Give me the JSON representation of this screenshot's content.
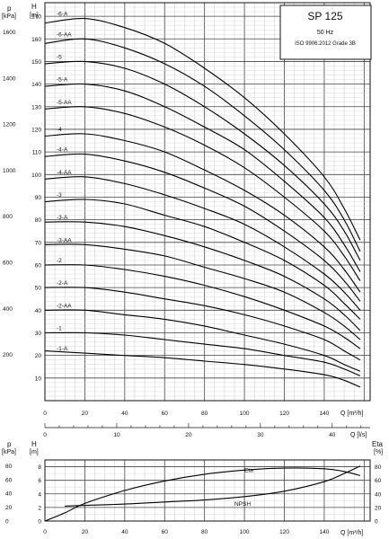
{
  "chart_data": [
    {
      "type": "line",
      "title": "SP 125",
      "subtitle_lines": [
        "50 Hz",
        "ISO 9906:2012 Grade 3B"
      ],
      "left_axis_p_label": "p",
      "left_axis_p_unit": "[kPa]",
      "left_axis_h_label": "H",
      "left_axis_h_unit": "[m]",
      "xlabel_q_m3h": "Q [m³/h]",
      "xlabel_q_ls": "Q [l/s]",
      "xlim_m3h": [
        0,
        163
      ],
      "ylim_h": [
        0,
        176
      ],
      "x_ticks_m3h": [
        0,
        20,
        40,
        60,
        80,
        100,
        120,
        140
      ],
      "x_ticks_ls": [
        0,
        10,
        20,
        30,
        40
      ],
      "h_ticks": [
        10,
        20,
        30,
        40,
        50,
        60,
        70,
        80,
        90,
        100,
        110,
        120,
        130,
        140,
        150,
        160,
        170
      ],
      "p_ticks": [
        200,
        400,
        600,
        800,
        1000,
        1200,
        1400,
        1600
      ],
      "grid": true,
      "series": [
        {
          "name": "-1-A",
          "x": [
            0,
            20,
            40,
            60,
            80,
            100,
            120,
            140,
            150,
            158
          ],
          "y": [
            22,
            21,
            20,
            19,
            17.5,
            16,
            14,
            11.5,
            9,
            6
          ]
        },
        {
          "name": "-1",
          "x": [
            0,
            20,
            40,
            60,
            80,
            100,
            120,
            140,
            150,
            158
          ],
          "y": [
            30,
            30,
            29,
            27,
            25,
            23,
            20,
            17,
            14,
            11
          ]
        },
        {
          "name": "-2-AA",
          "x": [
            0,
            20,
            40,
            60,
            80,
            100,
            120,
            140,
            150,
            158
          ],
          "y": [
            40,
            40,
            38,
            36,
            33,
            29,
            25,
            20,
            16,
            13
          ]
        },
        {
          "name": "-2-A",
          "x": [
            0,
            20,
            40,
            60,
            80,
            100,
            120,
            140,
            150,
            158
          ],
          "y": [
            50,
            50,
            48,
            45,
            42,
            38,
            33,
            27,
            22,
            18
          ]
        },
        {
          "name": "-2",
          "x": [
            0,
            20,
            40,
            60,
            80,
            100,
            120,
            140,
            150,
            158
          ],
          "y": [
            60,
            60,
            58,
            55,
            51,
            46,
            40,
            33,
            28,
            23
          ]
        },
        {
          "name": "-3-AA",
          "x": [
            0,
            20,
            40,
            60,
            80,
            100,
            120,
            140,
            150,
            158
          ],
          "y": [
            69,
            69,
            67,
            64,
            59,
            54,
            48,
            39,
            33,
            27
          ]
        },
        {
          "name": "-3-A",
          "x": [
            0,
            20,
            40,
            60,
            80,
            100,
            120,
            140,
            150,
            158
          ],
          "y": [
            79,
            79,
            77,
            73,
            68,
            62,
            55,
            45,
            38,
            31
          ]
        },
        {
          "name": "-3",
          "x": [
            0,
            20,
            40,
            60,
            80,
            100,
            120,
            140,
            150,
            158
          ],
          "y": [
            88,
            89,
            87,
            82,
            77,
            70,
            62,
            51,
            43,
            36
          ]
        },
        {
          "name": "-4-AA",
          "x": [
            0,
            20,
            40,
            60,
            80,
            100,
            120,
            140,
            150,
            158
          ],
          "y": [
            98,
            99,
            96,
            91,
            85,
            78,
            68,
            56,
            48,
            40
          ]
        },
        {
          "name": "-4-A",
          "x": [
            0,
            20,
            40,
            60,
            80,
            100,
            120,
            140,
            150,
            158
          ],
          "y": [
            108,
            109,
            106,
            101,
            94,
            86,
            75,
            62,
            53,
            44
          ]
        },
        {
          "name": "-4",
          "x": [
            0,
            20,
            40,
            60,
            80,
            100,
            120,
            140,
            150,
            158
          ],
          "y": [
            117,
            118,
            115,
            110,
            102,
            93,
            82,
            68,
            58,
            48
          ]
        },
        {
          "name": "-5-AA",
          "x": [
            0,
            20,
            40,
            60,
            80,
            100,
            120,
            140,
            150,
            158
          ],
          "y": [
            129,
            130,
            127,
            121,
            113,
            103,
            90,
            75,
            64,
            53
          ]
        },
        {
          "name": "-5-A",
          "x": [
            0,
            20,
            40,
            60,
            80,
            100,
            120,
            140,
            150,
            158
          ],
          "y": [
            139,
            140,
            137,
            130,
            121,
            111,
            97,
            81,
            69,
            57
          ]
        },
        {
          "name": "-5",
          "x": [
            0,
            20,
            40,
            60,
            80,
            100,
            120,
            140,
            150,
            158
          ],
          "y": [
            149,
            150,
            147,
            140,
            130,
            118,
            104,
            87,
            75,
            62
          ]
        },
        {
          "name": "-6-AA",
          "x": [
            0,
            20,
            40,
            60,
            80,
            100,
            120,
            140,
            150,
            158
          ],
          "y": [
            158,
            160,
            156,
            149,
            139,
            126,
            111,
            93,
            80,
            66
          ]
        },
        {
          "name": "-6-A",
          "x": [
            0,
            20,
            40,
            60,
            80,
            100,
            120,
            140,
            150,
            158
          ],
          "y": [
            167,
            169,
            165,
            158,
            147,
            134,
            118,
            99,
            85,
            71
          ]
        }
      ]
    },
    {
      "type": "line",
      "left_axis_p_label": "p",
      "left_axis_p_unit": "[kPa]",
      "left_axis_h_label": "H",
      "left_axis_h_unit": "[m]",
      "right_axis_label": "Eta",
      "right_axis_unit": "[%]",
      "xlabel_q_m3h": "Q [m³/h]",
      "xlim_m3h": [
        0,
        163
      ],
      "x_ticks_m3h": [
        0,
        20,
        40,
        60,
        80,
        100,
        120,
        140
      ],
      "h_ticks": [
        0,
        2,
        4,
        6,
        8
      ],
      "p_ticks": [
        0,
        20,
        40,
        60,
        80
      ],
      "eta_ticks": [
        0,
        20,
        40,
        60,
        80
      ],
      "ylim_h": [
        0,
        9
      ],
      "ylim_eta": [
        0,
        90
      ],
      "grid": true,
      "series": [
        {
          "name": "Eta",
          "axis": "eta",
          "x": [
            0,
            10,
            20,
            40,
            60,
            80,
            100,
            120,
            140,
            150,
            158
          ],
          "y": [
            0,
            12,
            26,
            45,
            59,
            69,
            75,
            78,
            77,
            73,
            67
          ]
        },
        {
          "name": "NPSH",
          "axis": "h",
          "x": [
            10,
            20,
            40,
            60,
            80,
            100,
            120,
            140,
            150,
            158
          ],
          "y": [
            2.2,
            2.3,
            2.5,
            2.8,
            3.1,
            3.6,
            4.4,
            5.8,
            7.0,
            8.1
          ]
        }
      ]
    }
  ]
}
